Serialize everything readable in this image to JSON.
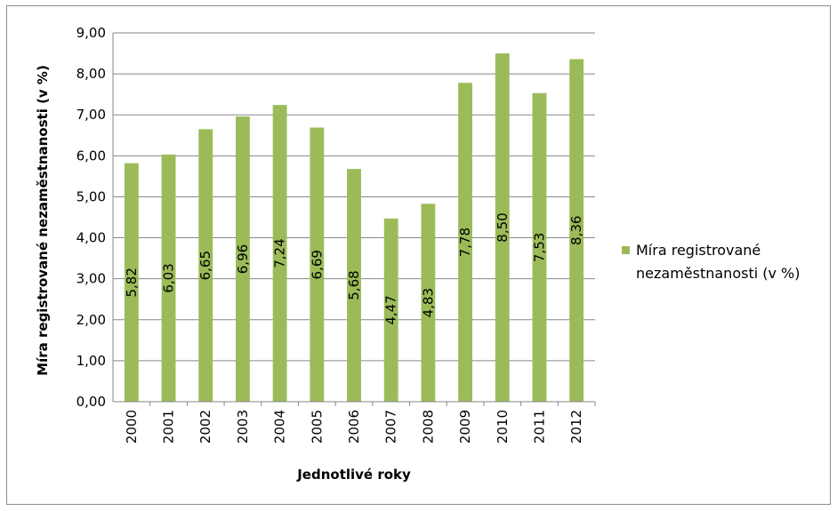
{
  "chart_data": {
    "type": "bar",
    "title": "",
    "xlabel": "Jednotlivé roky",
    "ylabel": "Míra registrované nezaměstnanosti (v %)",
    "categories": [
      "2000",
      "2001",
      "2002",
      "2003",
      "2004",
      "2005",
      "2006",
      "2007",
      "2008",
      "2009",
      "2010",
      "2011",
      "2012"
    ],
    "series": [
      {
        "name": "Míra registrované nezaměstnanosti (v %)",
        "values": [
          5.82,
          6.03,
          6.65,
          6.96,
          7.24,
          6.69,
          5.68,
          4.47,
          4.83,
          7.78,
          8.5,
          7.53,
          8.36
        ],
        "labels": [
          "5,82",
          "6,03",
          "6,65",
          "6,96",
          "7,24",
          "6,69",
          "5,68",
          "4,47",
          "4,83",
          "7,78",
          "8,50",
          "7,53",
          "8,36"
        ],
        "color": "#9bbb59"
      }
    ],
    "ylim": [
      0,
      9
    ],
    "yticks": [
      0,
      1,
      2,
      3,
      4,
      5,
      6,
      7,
      8,
      9
    ],
    "ytick_labels": [
      "0,00",
      "1,00",
      "2,00",
      "3,00",
      "4,00",
      "5,00",
      "6,00",
      "7,00",
      "8,00",
      "9,00"
    ],
    "grid": true,
    "gridline_color": "#878787",
    "legend": {
      "position": "right",
      "entries": [
        "Míra registrované",
        "nezaměstnanosti (v %)"
      ]
    }
  }
}
